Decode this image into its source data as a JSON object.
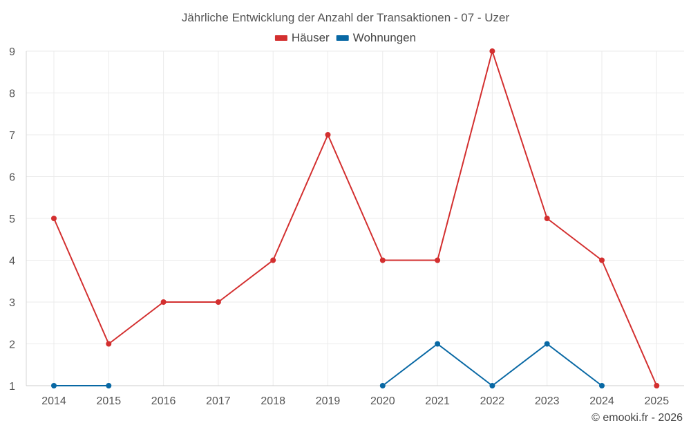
{
  "chart_data": {
    "type": "line",
    "title": "Jährliche Entwicklung der Anzahl der Transaktionen - 07 - Uzer",
    "xlabel": "",
    "ylabel": "",
    "categories": [
      "2014",
      "2015",
      "2016",
      "2017",
      "2018",
      "2019",
      "2020",
      "2021",
      "2022",
      "2023",
      "2024",
      "2025"
    ],
    "ylim": [
      1,
      9
    ],
    "yticks": [
      1,
      2,
      3,
      4,
      5,
      6,
      7,
      8,
      9
    ],
    "grid": true,
    "legend_position": "top-center",
    "series": [
      {
        "name": "Häuser",
        "color": "#d32f2f",
        "values": [
          5,
          2,
          3,
          3,
          4,
          7,
          4,
          4,
          9,
          5,
          4,
          1
        ]
      },
      {
        "name": "Wohnungen",
        "color": "#0868a4",
        "values": [
          1,
          1,
          null,
          null,
          null,
          null,
          1,
          2,
          1,
          2,
          1,
          null
        ]
      }
    ],
    "credit": "© emooki.fr - 2026"
  }
}
